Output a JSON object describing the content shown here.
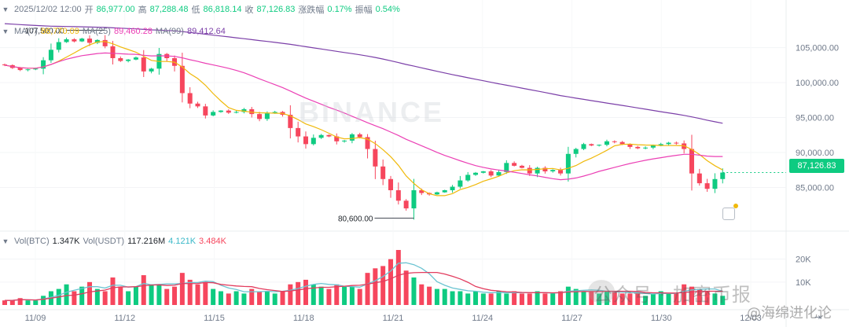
{
  "ohlc": {
    "date": "2025/12/02 12:00",
    "open_label": "开",
    "open": "86,977.00",
    "high_label": "高",
    "high": "87,288.48",
    "low_label": "低",
    "low": "86,818.14",
    "close_label": "收",
    "close": "87,126.83",
    "change_label": "涨跌幅",
    "change": "0.17%",
    "amp_label": "振幅",
    "amp": "0.54%"
  },
  "ma_legend": {
    "ma7_label": "MA(7)",
    "ma7_value": "86,770.09",
    "ma25_label": "MA(25)",
    "ma25_value": "89,460.28",
    "ma99_label": "MA(99)",
    "ma99_value": "89,412.64"
  },
  "vol_legend": {
    "btc_label": "Vol(BTC)",
    "btc_value": "1.347K",
    "usdt_label": "Vol(USDT)",
    "usdt_value": "117.216M",
    "v1": "4.121K",
    "v2": "3.484K"
  },
  "current_price": "87,126.83",
  "icons": {
    "goto": "⇥"
  },
  "watermark": {
    "brand": "BINANCE",
    "source": "公众号 · 加密币报",
    "handle": "@海绵进化论"
  },
  "colors": {
    "up": "#0ecb81",
    "down": "#f6465d",
    "ma7": "#f0b90b",
    "ma25": "#eb40b5",
    "ma99": "#7b3fa8",
    "vol_ma_a": "#e23c5e",
    "vol_ma_b": "#6cc4d2"
  },
  "chart_data": {
    "type": "candlestick",
    "interval": "12h",
    "price_axis": {
      "ticks": [
        85000,
        90000,
        95000,
        100000,
        105000
      ],
      "tick_labels": [
        "85,000.00",
        "90,000.00",
        "95,000.00",
        "100,000.00",
        "105,000.00"
      ],
      "range": [
        79200,
        109800
      ]
    },
    "volume_axis": {
      "ticks": [
        10000,
        20000
      ],
      "tick_labels": [
        "10K",
        "20K"
      ],
      "range": [
        0,
        24000
      ]
    },
    "x_ticks": [
      "11/09",
      "11/12",
      "11/15",
      "11/18",
      "11/21",
      "11/24",
      "11/27",
      "11/30",
      "12/03"
    ],
    "annotations": [
      {
        "label": "107,500.00",
        "value": 107500
      },
      {
        "label": "80,600.00",
        "value": 80600
      }
    ],
    "anchors": [
      [
        102500,
        2
      ],
      [
        102100,
        2
      ],
      [
        101800,
        3
      ],
      [
        101900,
        2
      ],
      [
        102000,
        2
      ],
      [
        103200,
        4
      ],
      [
        104700,
        6
      ],
      [
        105800,
        7
      ],
      [
        106200,
        9
      ],
      [
        105900,
        6
      ],
      [
        106300,
        8
      ],
      [
        105700,
        10
      ],
      [
        106100,
        7
      ],
      [
        105200,
        6
      ],
      [
        103500,
        12
      ],
      [
        103100,
        8
      ],
      [
        103300,
        6
      ],
      [
        103600,
        8
      ],
      [
        101600,
        13
      ],
      [
        102000,
        9
      ],
      [
        104100,
        9
      ],
      [
        103500,
        7
      ],
      [
        102400,
        8
      ],
      [
        98500,
        14
      ],
      [
        97000,
        11
      ],
      [
        96600,
        9
      ],
      [
        95300,
        10
      ],
      [
        95800,
        7
      ],
      [
        96000,
        6
      ],
      [
        95700,
        5
      ],
      [
        95800,
        6
      ],
      [
        96200,
        5
      ],
      [
        95500,
        7
      ],
      [
        94800,
        6
      ],
      [
        95600,
        6
      ],
      [
        95800,
        5
      ],
      [
        95400,
        6
      ],
      [
        93500,
        9
      ],
      [
        92300,
        10
      ],
      [
        91200,
        11
      ],
      [
        92100,
        9
      ],
      [
        92500,
        8
      ],
      [
        92300,
        7
      ],
      [
        91600,
        9
      ],
      [
        91700,
        8
      ],
      [
        92600,
        8
      ],
      [
        92200,
        7
      ],
      [
        90500,
        14
      ],
      [
        88000,
        16
      ],
      [
        86200,
        17
      ],
      [
        84600,
        20
      ],
      [
        83100,
        24
      ],
      [
        82000,
        15
      ],
      [
        84600,
        12
      ],
      [
        84200,
        9
      ],
      [
        84000,
        8
      ],
      [
        84300,
        7
      ],
      [
        84600,
        7
      ],
      [
        85100,
        6
      ],
      [
        86000,
        6
      ],
      [
        86800,
        5
      ],
      [
        87100,
        6
      ],
      [
        87300,
        5
      ],
      [
        86700,
        5
      ],
      [
        87200,
        6
      ],
      [
        88500,
        5
      ],
      [
        88100,
        6
      ],
      [
        87800,
        5
      ],
      [
        87000,
        5
      ],
      [
        87800,
        6
      ],
      [
        87300,
        5
      ],
      [
        87500,
        5
      ],
      [
        87000,
        6
      ],
      [
        89800,
        8
      ],
      [
        90500,
        7
      ],
      [
        91200,
        6
      ],
      [
        91000,
        6
      ],
      [
        91100,
        5
      ],
      [
        91600,
        6
      ],
      [
        91500,
        6
      ],
      [
        91200,
        5
      ],
      [
        90800,
        5
      ],
      [
        90600,
        5
      ],
      [
        90700,
        4
      ],
      [
        91000,
        5
      ],
      [
        91200,
        6
      ],
      [
        91400,
        5
      ],
      [
        91300,
        5
      ],
      [
        90500,
        9
      ],
      [
        87000,
        8
      ],
      [
        85600,
        7
      ],
      [
        84800,
        6
      ],
      [
        86200,
        5
      ],
      [
        87126.83,
        4
      ]
    ]
  }
}
